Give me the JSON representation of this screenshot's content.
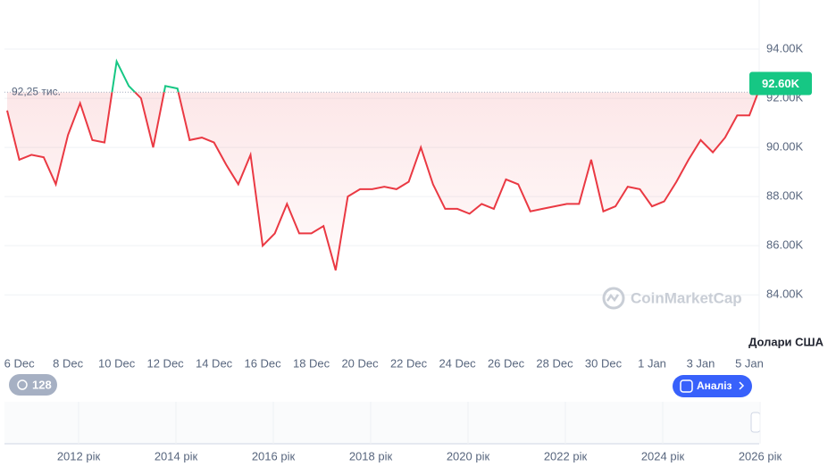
{
  "chart_data": {
    "type": "line",
    "categories": [
      null,
      "6 Dec",
      null,
      null,
      null,
      "8 Dec",
      null,
      null,
      null,
      "10 Dec",
      null,
      null,
      null,
      "12 Dec",
      null,
      null,
      null,
      "14 Dec",
      null,
      null,
      null,
      "16 Dec",
      null,
      null,
      null,
      "18 Dec",
      null,
      null,
      null,
      "20 Dec",
      null,
      null,
      null,
      "22 Dec",
      null,
      null,
      null,
      "24 Dec",
      null,
      null,
      null,
      "26 Dec",
      null,
      null,
      null,
      "28 Dec",
      null,
      null,
      null,
      "30 Dec",
      null,
      null,
      null,
      "1 Jan",
      null,
      null,
      null,
      "3 Jan",
      null,
      null,
      null,
      "5 Jan",
      null
    ],
    "values": [
      91.5,
      89.5,
      89.7,
      89.6,
      88.5,
      90.5,
      91.8,
      90.3,
      90.2,
      93.5,
      92.5,
      92.0,
      90.0,
      92.5,
      92.4,
      90.3,
      90.4,
      90.2,
      89.3,
      88.5,
      89.7,
      86.0,
      86.5,
      87.7,
      86.5,
      86.5,
      86.8,
      85.0,
      88.0,
      88.3,
      88.3,
      88.4,
      88.3,
      88.6,
      90.0,
      88.5,
      87.5,
      87.5,
      87.3,
      87.7,
      87.5,
      88.7,
      88.5,
      87.4,
      87.5,
      87.6,
      87.7,
      87.7,
      89.5,
      87.4,
      87.6,
      88.4,
      88.3,
      87.6,
      87.8,
      88.6,
      89.5,
      90.3,
      89.8,
      90.4,
      91.3,
      91.3,
      92.6
    ],
    "color_up": "#16c784",
    "color_down": "#ea3943",
    "ylim": [
      81.9,
      96
    ],
    "yticks": [
      {
        "value": 84,
        "label": "84.00K"
      },
      {
        "value": 86,
        "label": "86.00K"
      },
      {
        "value": 88,
        "label": "88.00K"
      },
      {
        "value": 90,
        "label": "90.00K"
      },
      {
        "value": 92,
        "label": "92.00K"
      },
      {
        "value": 94,
        "label": "94.00K"
      }
    ],
    "grid": true,
    "reference": {
      "value": 92.25,
      "label": "92,25 тис."
    },
    "last_price": {
      "value": 92.6,
      "label": "92.60K"
    },
    "y_axis_unit": "Долари США"
  },
  "navigator": {
    "years": [
      "2012 рік",
      "2014 рік",
      "2016 рік",
      "2018 рік",
      "2020 рік",
      "2022 рік",
      "2024 рік",
      "2026 рік"
    ]
  },
  "ui": {
    "badge": "128",
    "button": "Аналіз",
    "watermark": "CoinMarketCap"
  }
}
